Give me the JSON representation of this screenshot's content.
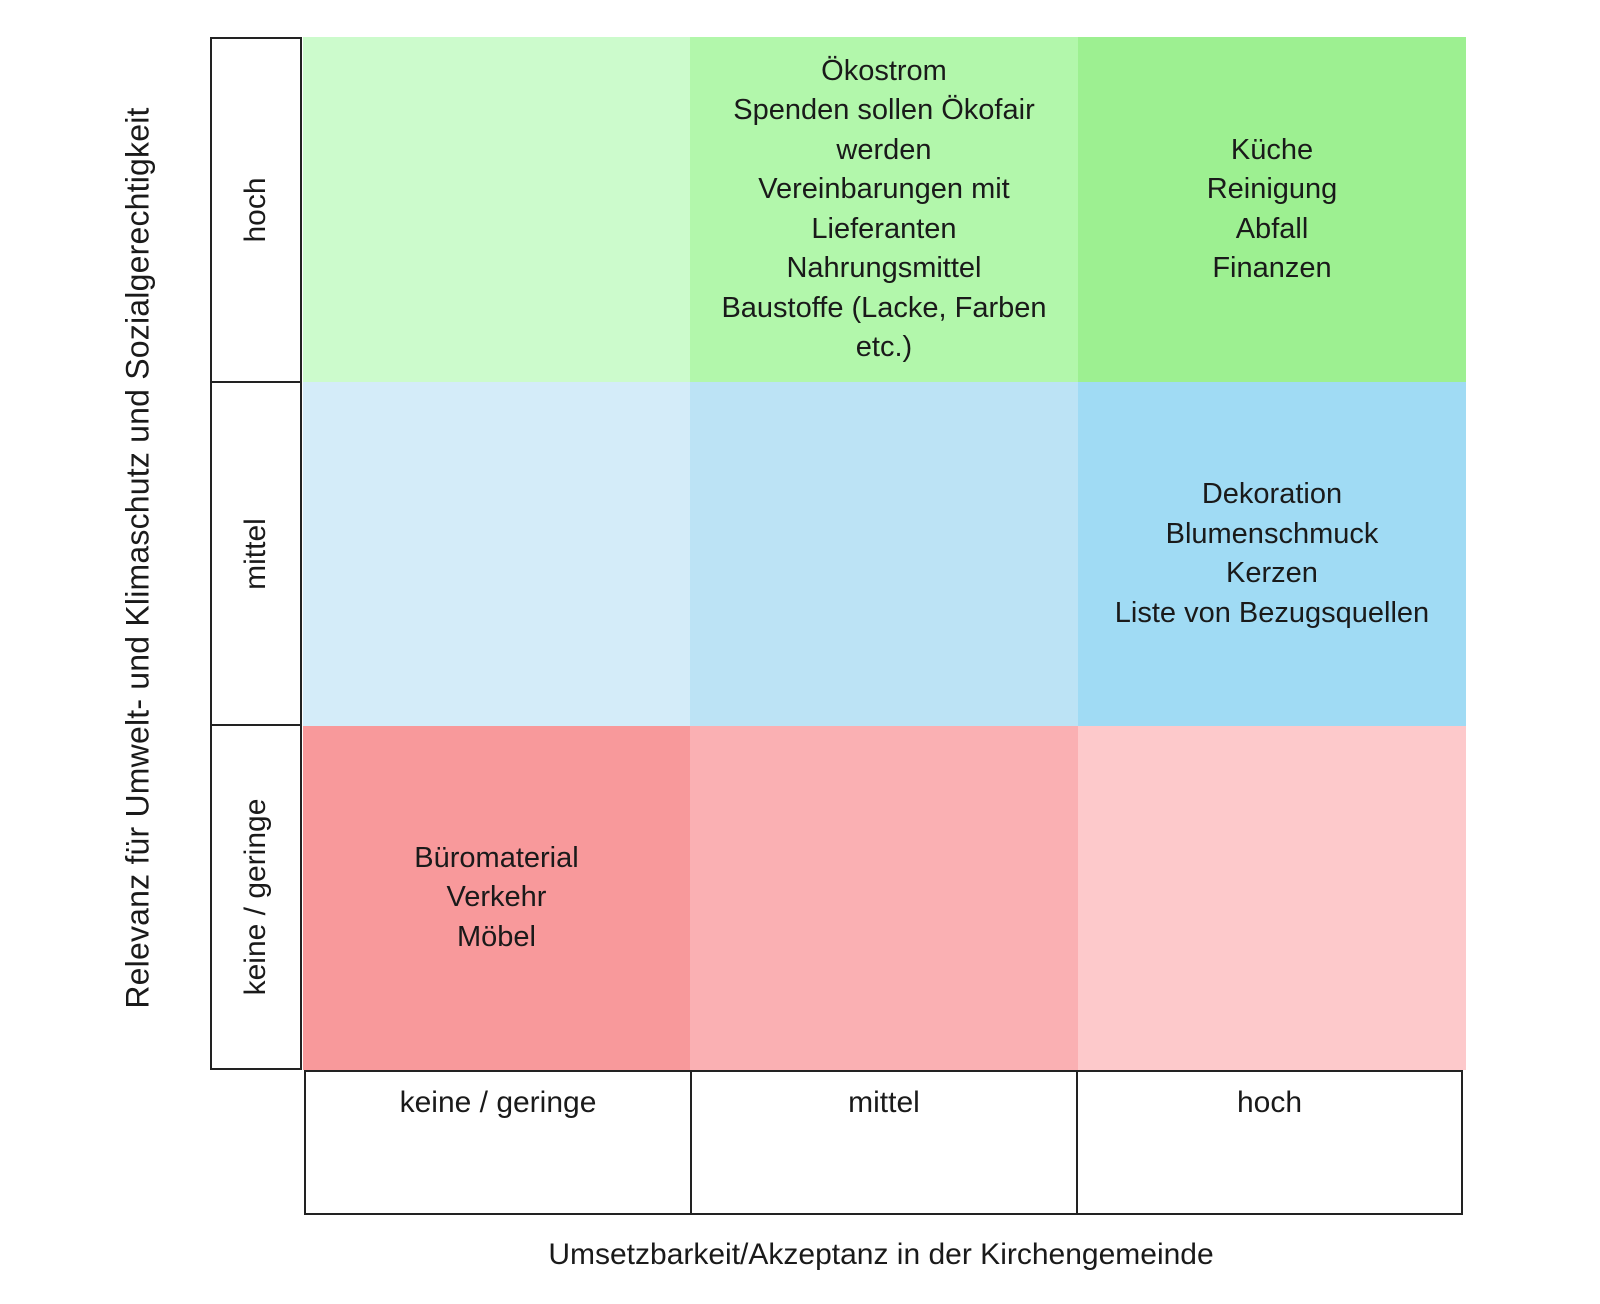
{
  "y_axis": {
    "title": "Relevanz für Umwelt- und Klimaschutz und Sozialgerechtigkeit",
    "levels": [
      "hoch",
      "mittel",
      "keine / geringe"
    ]
  },
  "x_axis": {
    "title": "Umsetzbarkeit/Akzeptanz in der Kirchengemeinde",
    "levels": [
      "keine / geringe",
      "mittel",
      "hoch"
    ]
  },
  "colors": {
    "hoch_geringe": "#ccfbcc",
    "hoch_mittel": "#b2f7ab",
    "hoch_hoch": "#9df091",
    "mittel_geringe": "#d4ecf9",
    "mittel_mittel": "#bce3f5",
    "mittel_hoch": "#a0dbf4",
    "geringe_geringe": "#f8999b",
    "geringe_mittel": "#fab0b3",
    "geringe_hoch": "#fdc9cb"
  },
  "matrix": {
    "hoch": {
      "geringe": [],
      "mittel": [
        "Ökostrom",
        "Spenden sollen Ökofair",
        "werden",
        "Vereinbarungen mit",
        "Lieferanten",
        "Nahrungsmittel",
        "Baustoffe (Lacke, Farben",
        "etc.)"
      ],
      "hoch": [
        "Küche",
        "Reinigung",
        "Abfall",
        "Finanzen"
      ]
    },
    "mittel": {
      "geringe": [],
      "mittel": [],
      "hoch": [
        "Dekoration",
        "Blumenschmuck",
        "Kerzen",
        "Liste von Bezugsquellen"
      ]
    },
    "geringe": {
      "geringe": [
        "Büromaterial",
        "Verkehr",
        "Möbel"
      ],
      "mittel": [],
      "hoch": []
    }
  }
}
